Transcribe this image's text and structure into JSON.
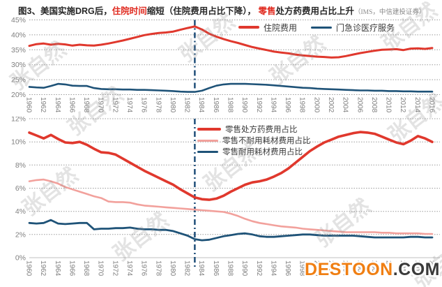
{
  "title": {
    "segments": [
      {
        "text": "图3、美国实施DRG后，",
        "style": "dark"
      },
      {
        "text": "住院时间",
        "style": "red"
      },
      {
        "text": "缩短（住院费用占比下降）， ",
        "style": "dark"
      },
      {
        "text": "零售",
        "style": "red"
      },
      {
        "text": "处方药费用占比上升",
        "style": "dark"
      },
      {
        "text": "（IMS，中信建投证券）",
        "style": "source"
      }
    ]
  },
  "colors": {
    "red": "#e0382d",
    "pink": "#f2a19c",
    "blue": "#1f5378",
    "grid": "#9b9b9b",
    "zero_axis": "#c0c0c0",
    "axis_text": "#7f7f7f",
    "marker": "#1f4e79",
    "title_red": "#e02b20",
    "destoon_orange": "#f07f13",
    "destoon_dark": "#3a3a3a"
  },
  "watermark": {
    "text": "张自然",
    "brand": "DESTOON",
    "brand_suffix": ".COM"
  },
  "chart_data": [
    {
      "type": "line",
      "panel": "hospital-vs-outpatient-share",
      "ylim": [
        20,
        45
      ],
      "ytick_step": 5,
      "ytick_suffix": "%",
      "x_range": [
        1960,
        2016
      ],
      "xtick_step": 2,
      "marker_x": 1983,
      "grid": "dotted-horizontal",
      "legend_position": "top-center-horizontal",
      "years": [
        1960,
        1961,
        1962,
        1963,
        1964,
        1965,
        1966,
        1967,
        1968,
        1969,
        1970,
        1971,
        1972,
        1973,
        1974,
        1975,
        1976,
        1977,
        1978,
        1979,
        1980,
        1981,
        1982,
        1983,
        1984,
        1985,
        1986,
        1987,
        1988,
        1989,
        1990,
        1991,
        1992,
        1993,
        1994,
        1995,
        1996,
        1997,
        1998,
        1999,
        2000,
        2001,
        2002,
        2003,
        2004,
        2005,
        2006,
        2007,
        2008,
        2009,
        2010,
        2011,
        2012,
        2013,
        2014,
        2015,
        2016
      ],
      "series": [
        {
          "name": "住院费用",
          "color_key": "red",
          "values": [
            36.3,
            36.9,
            37.1,
            36.7,
            37.0,
            36.8,
            36.4,
            36.7,
            36.5,
            36.4,
            36.7,
            37.1,
            37.6,
            38.1,
            38.7,
            39.3,
            39.9,
            40.3,
            40.6,
            40.8,
            41.1,
            41.7,
            42.3,
            42.8,
            41.8,
            40.4,
            39.4,
            38.6,
            37.9,
            37.3,
            36.6,
            35.9,
            35.4,
            34.9,
            34.4,
            34.1,
            33.8,
            33.4,
            33.1,
            32.9,
            32.7,
            32.6,
            32.4,
            32.5,
            32.9,
            33.4,
            33.9,
            34.3,
            34.7,
            35.0,
            35.1,
            35.2,
            34.9,
            35.4,
            35.5,
            35.3,
            35.6
          ]
        },
        {
          "name": "门急诊医疗服务",
          "color_key": "blue",
          "values": [
            22.6,
            22.4,
            22.3,
            22.9,
            23.6,
            23.4,
            23.0,
            22.9,
            22.9,
            22.2,
            21.9,
            21.8,
            21.8,
            21.7,
            21.7,
            21.6,
            21.6,
            21.5,
            21.4,
            21.3,
            21.2,
            21.0,
            20.9,
            20.9,
            21.3,
            22.2,
            23.0,
            23.4,
            23.6,
            23.6,
            23.6,
            23.5,
            23.4,
            23.3,
            23.1,
            22.9,
            22.7,
            22.5,
            22.3,
            22.2,
            22.0,
            21.9,
            21.8,
            21.7,
            21.6,
            21.5,
            21.4,
            21.4,
            21.3,
            21.3,
            21.2,
            21.2,
            21.1,
            21.1,
            21.0,
            21.0,
            21.0
          ]
        }
      ]
    },
    {
      "type": "line",
      "panel": "retail-drug-and-supplies-share",
      "ylim": [
        0,
        12
      ],
      "ytick_step": 2,
      "ytick_suffix": "%",
      "x_range": [
        1960,
        2016
      ],
      "xtick_step": 2,
      "marker_x": 1983,
      "grid": "dotted-horizontal",
      "legend_position": "upper-middle-vertical",
      "years": [
        1960,
        1961,
        1962,
        1963,
        1964,
        1965,
        1966,
        1967,
        1968,
        1969,
        1970,
        1971,
        1972,
        1973,
        1974,
        1975,
        1976,
        1977,
        1978,
        1979,
        1980,
        1981,
        1982,
        1983,
        1984,
        1985,
        1986,
        1987,
        1988,
        1989,
        1990,
        1991,
        1992,
        1993,
        1994,
        1995,
        1996,
        1997,
        1998,
        1999,
        2000,
        2001,
        2002,
        2003,
        2004,
        2005,
        2006,
        2007,
        2008,
        2009,
        2010,
        2011,
        2012,
        2013,
        2014,
        2015,
        2016
      ],
      "series": [
        {
          "name": "零售处方药费用占比",
          "color_key": "red",
          "values": [
            10.8,
            10.55,
            10.3,
            10.6,
            10.25,
            9.95,
            9.9,
            10.0,
            9.75,
            9.4,
            9.1,
            9.05,
            8.9,
            8.55,
            8.2,
            7.85,
            7.5,
            7.2,
            6.9,
            6.6,
            6.3,
            5.9,
            5.55,
            5.2,
            5.05,
            5.0,
            5.1,
            5.35,
            5.7,
            6.0,
            6.3,
            6.5,
            6.6,
            6.75,
            7.0,
            7.3,
            7.7,
            8.2,
            8.7,
            9.2,
            9.6,
            9.95,
            10.2,
            10.45,
            10.6,
            10.75,
            10.85,
            10.8,
            10.7,
            10.45,
            10.2,
            9.95,
            9.8,
            10.1,
            10.5,
            10.3,
            10.0
          ]
        },
        {
          "name": "零售不耐用耗材费用占比",
          "color_key": "pink",
          "values": [
            6.6,
            6.7,
            6.75,
            6.6,
            6.4,
            6.1,
            5.9,
            5.7,
            5.5,
            5.3,
            5.15,
            4.85,
            4.8,
            4.8,
            4.75,
            4.6,
            4.5,
            4.45,
            4.4,
            4.35,
            4.3,
            4.25,
            4.2,
            4.15,
            4.1,
            4.05,
            4.0,
            3.95,
            3.8,
            3.6,
            3.35,
            3.15,
            3.0,
            2.9,
            2.8,
            2.7,
            2.65,
            2.6,
            2.5,
            2.45,
            2.4,
            2.35,
            2.3,
            2.25,
            2.2,
            2.2,
            2.2,
            2.2,
            2.2,
            2.15,
            2.15,
            2.1,
            2.1,
            2.1,
            2.1,
            2.05,
            2.05
          ]
        },
        {
          "name": "零售耐用耗材费用占比",
          "color_key": "blue",
          "values": [
            3.0,
            2.95,
            3.0,
            3.25,
            2.95,
            2.9,
            2.95,
            3.0,
            3.0,
            2.45,
            2.5,
            2.5,
            2.55,
            2.55,
            2.6,
            2.5,
            2.45,
            2.45,
            2.4,
            2.4,
            2.3,
            2.1,
            1.9,
            1.6,
            1.5,
            1.55,
            1.7,
            1.85,
            1.95,
            2.05,
            2.1,
            2.0,
            1.85,
            1.8,
            1.8,
            1.85,
            1.9,
            1.95,
            2.0,
            2.0,
            1.95,
            1.9,
            1.9,
            1.9,
            1.9,
            1.9,
            1.85,
            1.8,
            1.75,
            1.75,
            1.75,
            1.75,
            1.75,
            1.8,
            1.8,
            1.75,
            1.75
          ]
        }
      ]
    }
  ]
}
